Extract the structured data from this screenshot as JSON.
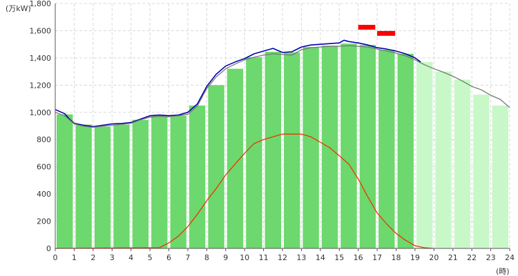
{
  "chart_data": {
    "type": "bar",
    "y_unit_label": "(万kW)",
    "x_unit_label": "(時)",
    "x_ticks": [
      "0",
      "1",
      "2",
      "3",
      "4",
      "5",
      "6",
      "7",
      "8",
      "9",
      "10",
      "11",
      "12",
      "13",
      "14",
      "15",
      "16",
      "17",
      "18",
      "19",
      "20",
      "21",
      "22",
      "23",
      "24"
    ],
    "y_ticks": [
      "0",
      "200",
      "400",
      "600",
      "800",
      "1,000",
      "1,200",
      "1,400",
      "1,600",
      "1,800"
    ],
    "ylim": [
      0,
      1800
    ],
    "xlim": [
      0,
      24
    ],
    "grid": true,
    "colors": {
      "bar_actual": "#6dd86d",
      "bar_forecast": "#c8f8c8",
      "demand_line": "#0000b0",
      "forecast_line": "#777777",
      "solar_line": "#ee3300",
      "peak_marker": "#ff0000",
      "grid": "#d8d8d8",
      "axis": "#555555"
    },
    "series": [
      {
        "key": "hourly_bars",
        "kind": "bar",
        "x": [
          0,
          1,
          2,
          3,
          4,
          5,
          6,
          7,
          8,
          9,
          10,
          11,
          12,
          13,
          14,
          15,
          16,
          17,
          18,
          19,
          20,
          21,
          22,
          23
        ],
        "values": [
          985,
          910,
          895,
          910,
          945,
          975,
          975,
          1050,
          1200,
          1320,
          1405,
          1445,
          1440,
          1480,
          1490,
          1505,
          1495,
          1460,
          1430,
          1370,
          1300,
          1240,
          1130,
          1050
        ],
        "forecast_from_hour": 19
      },
      {
        "key": "demand",
        "kind": "line",
        "x": [
          0,
          0.25,
          0.5,
          0.75,
          1,
          1.5,
          2,
          2.5,
          3,
          3.5,
          4,
          4.5,
          5,
          5.5,
          6,
          6.5,
          7,
          7.5,
          8,
          8.5,
          9,
          9.5,
          10,
          10.5,
          11,
          11.5,
          12,
          12.5,
          13,
          13.5,
          14,
          14.5,
          15,
          15.25,
          15.5,
          16,
          16.5,
          17,
          17.5,
          18,
          18.5,
          19,
          19.3
        ],
        "values": [
          1020,
          1005,
          990,
          950,
          920,
          905,
          895,
          905,
          915,
          918,
          925,
          950,
          975,
          980,
          975,
          980,
          1000,
          1060,
          1190,
          1280,
          1340,
          1370,
          1395,
          1430,
          1450,
          1470,
          1440,
          1445,
          1480,
          1495,
          1500,
          1505,
          1510,
          1530,
          1520,
          1510,
          1495,
          1475,
          1465,
          1450,
          1430,
          1400,
          1370
        ]
      },
      {
        "key": "forecast_demand",
        "kind": "line",
        "x": [
          0,
          0.5,
          1,
          1.5,
          2,
          2.5,
          3,
          3.5,
          4,
          4.5,
          5,
          5.5,
          6,
          6.5,
          7,
          7.5,
          8,
          8.5,
          9,
          9.5,
          10,
          10.5,
          11,
          11.5,
          12,
          12.5,
          13,
          13.5,
          14,
          14.5,
          15,
          15.5,
          16,
          16.5,
          17,
          17.5,
          18,
          18.5,
          19,
          19.5,
          20,
          20.5,
          21,
          21.5,
          22,
          22.5,
          23,
          23.5,
          24
        ],
        "values": [
          1000,
          975,
          915,
          898,
          890,
          898,
          905,
          912,
          920,
          945,
          965,
          970,
          968,
          975,
          985,
          1045,
          1175,
          1260,
          1320,
          1355,
          1385,
          1405,
          1420,
          1430,
          1425,
          1420,
          1460,
          1475,
          1480,
          1485,
          1485,
          1490,
          1485,
          1480,
          1465,
          1450,
          1435,
          1415,
          1385,
          1350,
          1320,
          1295,
          1265,
          1230,
          1190,
          1165,
          1125,
          1095,
          1035
        ]
      },
      {
        "key": "solar",
        "kind": "line",
        "x": [
          0,
          5.5,
          6,
          6.5,
          7,
          7.5,
          8,
          8.5,
          9,
          9.5,
          10,
          10.5,
          11,
          11.5,
          12,
          12.5,
          13,
          13.5,
          14,
          14.5,
          15,
          15.5,
          16,
          16.5,
          17,
          17.5,
          18,
          18.5,
          19,
          19.5,
          20
        ],
        "values": [
          0,
          5,
          40,
          90,
          160,
          250,
          350,
          440,
          540,
          620,
          700,
          770,
          800,
          820,
          840,
          840,
          840,
          820,
          780,
          740,
          680,
          620,
          510,
          380,
          260,
          180,
          110,
          60,
          20,
          5,
          0
        ]
      }
    ],
    "peak_markers": [
      {
        "x_start": 16.0,
        "x_end": 16.9,
        "y": 1625
      },
      {
        "x_start": 17.0,
        "x_end": 17.95,
        "y": 1580
      }
    ]
  }
}
